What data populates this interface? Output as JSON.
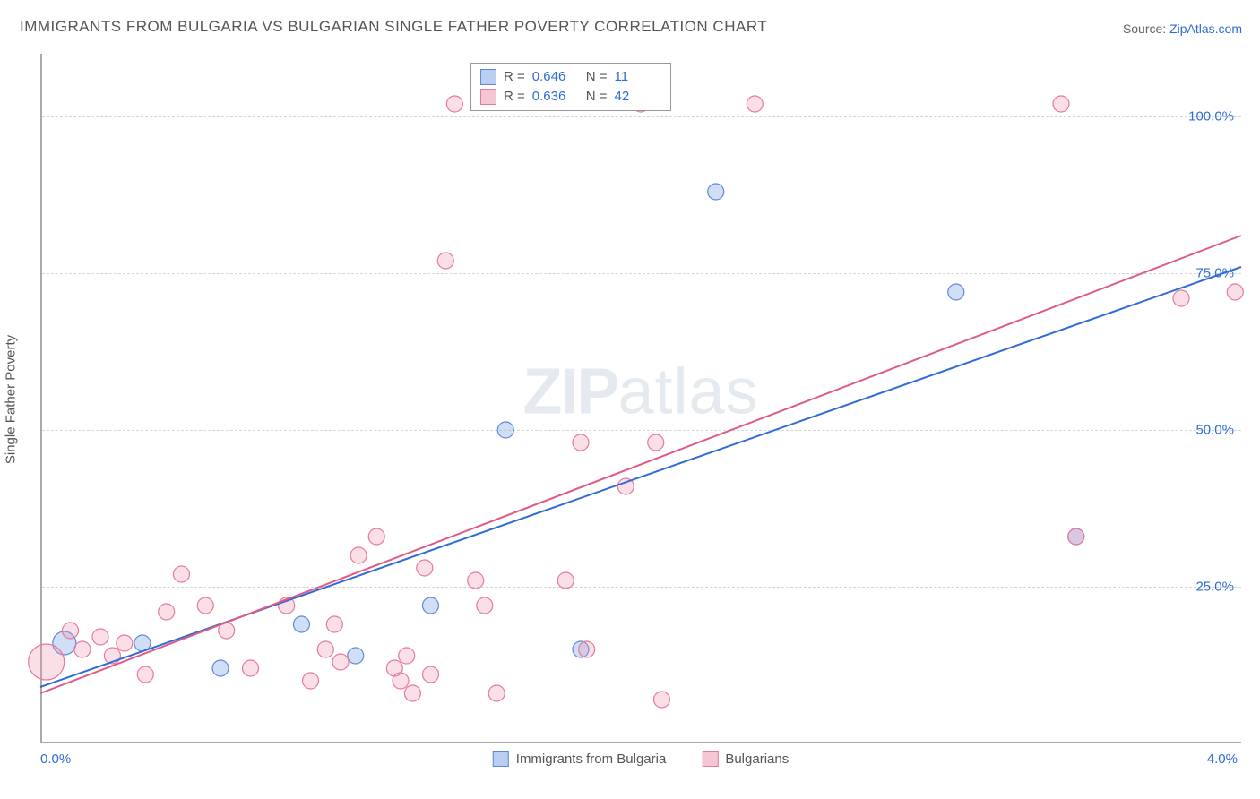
{
  "title": "IMMIGRANTS FROM BULGARIA VS BULGARIAN SINGLE FATHER POVERTY CORRELATION CHART",
  "source_label": "Source:",
  "source_value": "ZipAtlas.com",
  "yaxis_title": "Single Father Poverty",
  "watermark_a": "ZIP",
  "watermark_b": "atlas",
  "chart": {
    "type": "scatter",
    "xlim": [
      0.0,
      4.0
    ],
    "ylim": [
      0.0,
      110.0
    ],
    "x_ticks": [
      {
        "v": 0.0,
        "label": "0.0%",
        "align": "left"
      },
      {
        "v": 4.0,
        "label": "4.0%",
        "align": "right"
      }
    ],
    "y_ticks": [
      {
        "v": 25.0,
        "label": "25.0%"
      },
      {
        "v": 50.0,
        "label": "50.0%"
      },
      {
        "v": 75.0,
        "label": "75.0%"
      },
      {
        "v": 100.0,
        "label": "100.0%"
      }
    ],
    "grid_color": "#d5d5d5",
    "background_color": "#ffffff",
    "series": [
      {
        "name": "Immigrants from Bulgaria",
        "color_fill": "rgba(120,160,230,0.35)",
        "color_stroke": "#5b8ad8",
        "swatch_fill": "#b9cef0",
        "swatch_stroke": "#5b8ad8",
        "r_stat": "0.646",
        "n_stat": "11",
        "default_r": 9,
        "line": {
          "x1": 0.0,
          "y1": 9.0,
          "x2": 4.0,
          "y2": 76.0,
          "stroke": "#2e6bd6",
          "width": 2
        },
        "points": [
          {
            "x": 0.08,
            "y": 16,
            "r": 13
          },
          {
            "x": 0.34,
            "y": 16
          },
          {
            "x": 0.6,
            "y": 12
          },
          {
            "x": 0.87,
            "y": 19
          },
          {
            "x": 1.05,
            "y": 14
          },
          {
            "x": 1.3,
            "y": 22
          },
          {
            "x": 1.55,
            "y": 50
          },
          {
            "x": 1.8,
            "y": 15
          },
          {
            "x": 2.25,
            "y": 88
          },
          {
            "x": 3.05,
            "y": 72
          },
          {
            "x": 3.45,
            "y": 33
          }
        ]
      },
      {
        "name": "Bulgarians",
        "color_fill": "rgba(240,150,175,0.30)",
        "color_stroke": "#e47a9a",
        "swatch_fill": "#f6c6d4",
        "swatch_stroke": "#e47a9a",
        "r_stat": "0.636",
        "n_stat": "42",
        "default_r": 9,
        "line": {
          "x1": 0.0,
          "y1": 8.0,
          "x2": 4.0,
          "y2": 81.0,
          "stroke": "#e05a85",
          "width": 2
        },
        "points": [
          {
            "x": 0.02,
            "y": 13,
            "r": 20
          },
          {
            "x": 0.1,
            "y": 18
          },
          {
            "x": 0.14,
            "y": 15
          },
          {
            "x": 0.2,
            "y": 17
          },
          {
            "x": 0.24,
            "y": 14
          },
          {
            "x": 0.28,
            "y": 16
          },
          {
            "x": 0.35,
            "y": 11
          },
          {
            "x": 0.42,
            "y": 21
          },
          {
            "x": 0.47,
            "y": 27
          },
          {
            "x": 0.55,
            "y": 22
          },
          {
            "x": 0.62,
            "y": 18
          },
          {
            "x": 0.7,
            "y": 12
          },
          {
            "x": 0.82,
            "y": 22
          },
          {
            "x": 0.9,
            "y": 10
          },
          {
            "x": 0.95,
            "y": 15
          },
          {
            "x": 0.98,
            "y": 19
          },
          {
            "x": 1.0,
            "y": 13
          },
          {
            "x": 1.06,
            "y": 30
          },
          {
            "x": 1.12,
            "y": 33
          },
          {
            "x": 1.18,
            "y": 12
          },
          {
            "x": 1.2,
            "y": 10
          },
          {
            "x": 1.22,
            "y": 14
          },
          {
            "x": 1.24,
            "y": 8
          },
          {
            "x": 1.28,
            "y": 28
          },
          {
            "x": 1.3,
            "y": 11
          },
          {
            "x": 1.35,
            "y": 77
          },
          {
            "x": 1.38,
            "y": 102
          },
          {
            "x": 1.45,
            "y": 26
          },
          {
            "x": 1.48,
            "y": 22
          },
          {
            "x": 1.52,
            "y": 8
          },
          {
            "x": 1.75,
            "y": 26
          },
          {
            "x": 1.8,
            "y": 48
          },
          {
            "x": 1.82,
            "y": 15
          },
          {
            "x": 1.95,
            "y": 41
          },
          {
            "x": 2.0,
            "y": 102
          },
          {
            "x": 2.05,
            "y": 48
          },
          {
            "x": 2.07,
            "y": 7
          },
          {
            "x": 2.38,
            "y": 102
          },
          {
            "x": 3.4,
            "y": 102
          },
          {
            "x": 3.45,
            "y": 33
          },
          {
            "x": 3.8,
            "y": 71
          },
          {
            "x": 3.98,
            "y": 72
          }
        ]
      }
    ],
    "legend_top": {
      "r_prefix": "R =",
      "n_prefix": "N ="
    },
    "bottom_legend": [
      "Immigrants from Bulgaria",
      "Bulgarians"
    ]
  }
}
